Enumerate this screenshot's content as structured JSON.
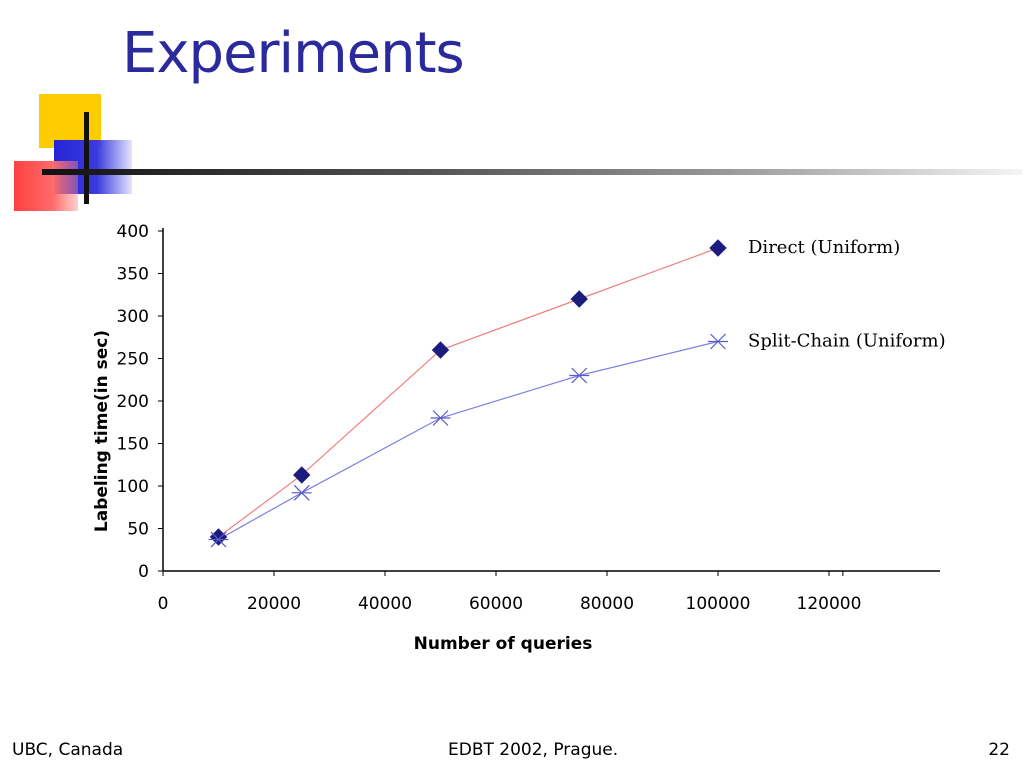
{
  "slide": {
    "title": "Experiments",
    "footer_left": "UBC, Canada",
    "footer_center": "EDBT 2002, Prague.",
    "footer_right": "22"
  },
  "colors": {
    "title": "#2a2a9c",
    "direct_line": "#f08080",
    "direct_marker": "#1c1c7e",
    "split_line": "#8080e0",
    "split_marker": "#5a5ac8"
  },
  "chart_data": {
    "type": "line",
    "xlabel": "Number of queries",
    "ylabel": "Labeling time(in sec)",
    "xlim": [
      0,
      140000
    ],
    "ylim": [
      0,
      400
    ],
    "x_ticks": [
      0,
      20000,
      40000,
      60000,
      80000,
      100000,
      120000
    ],
    "y_ticks": [
      0,
      50,
      100,
      150,
      200,
      250,
      300,
      350,
      400
    ],
    "grid": false,
    "legend": "inline-right",
    "series": [
      {
        "name": "Direct (Uniform)",
        "marker": "diamond",
        "x": [
          10000,
          25000,
          50000,
          75000,
          100000
        ],
        "y": [
          40,
          113,
          260,
          320,
          380
        ]
      },
      {
        "name": "Split-Chain (Uniform)",
        "marker": "star",
        "x": [
          10000,
          25000,
          50000,
          75000,
          100000
        ],
        "y": [
          37,
          92,
          180,
          230,
          270
        ]
      }
    ]
  }
}
